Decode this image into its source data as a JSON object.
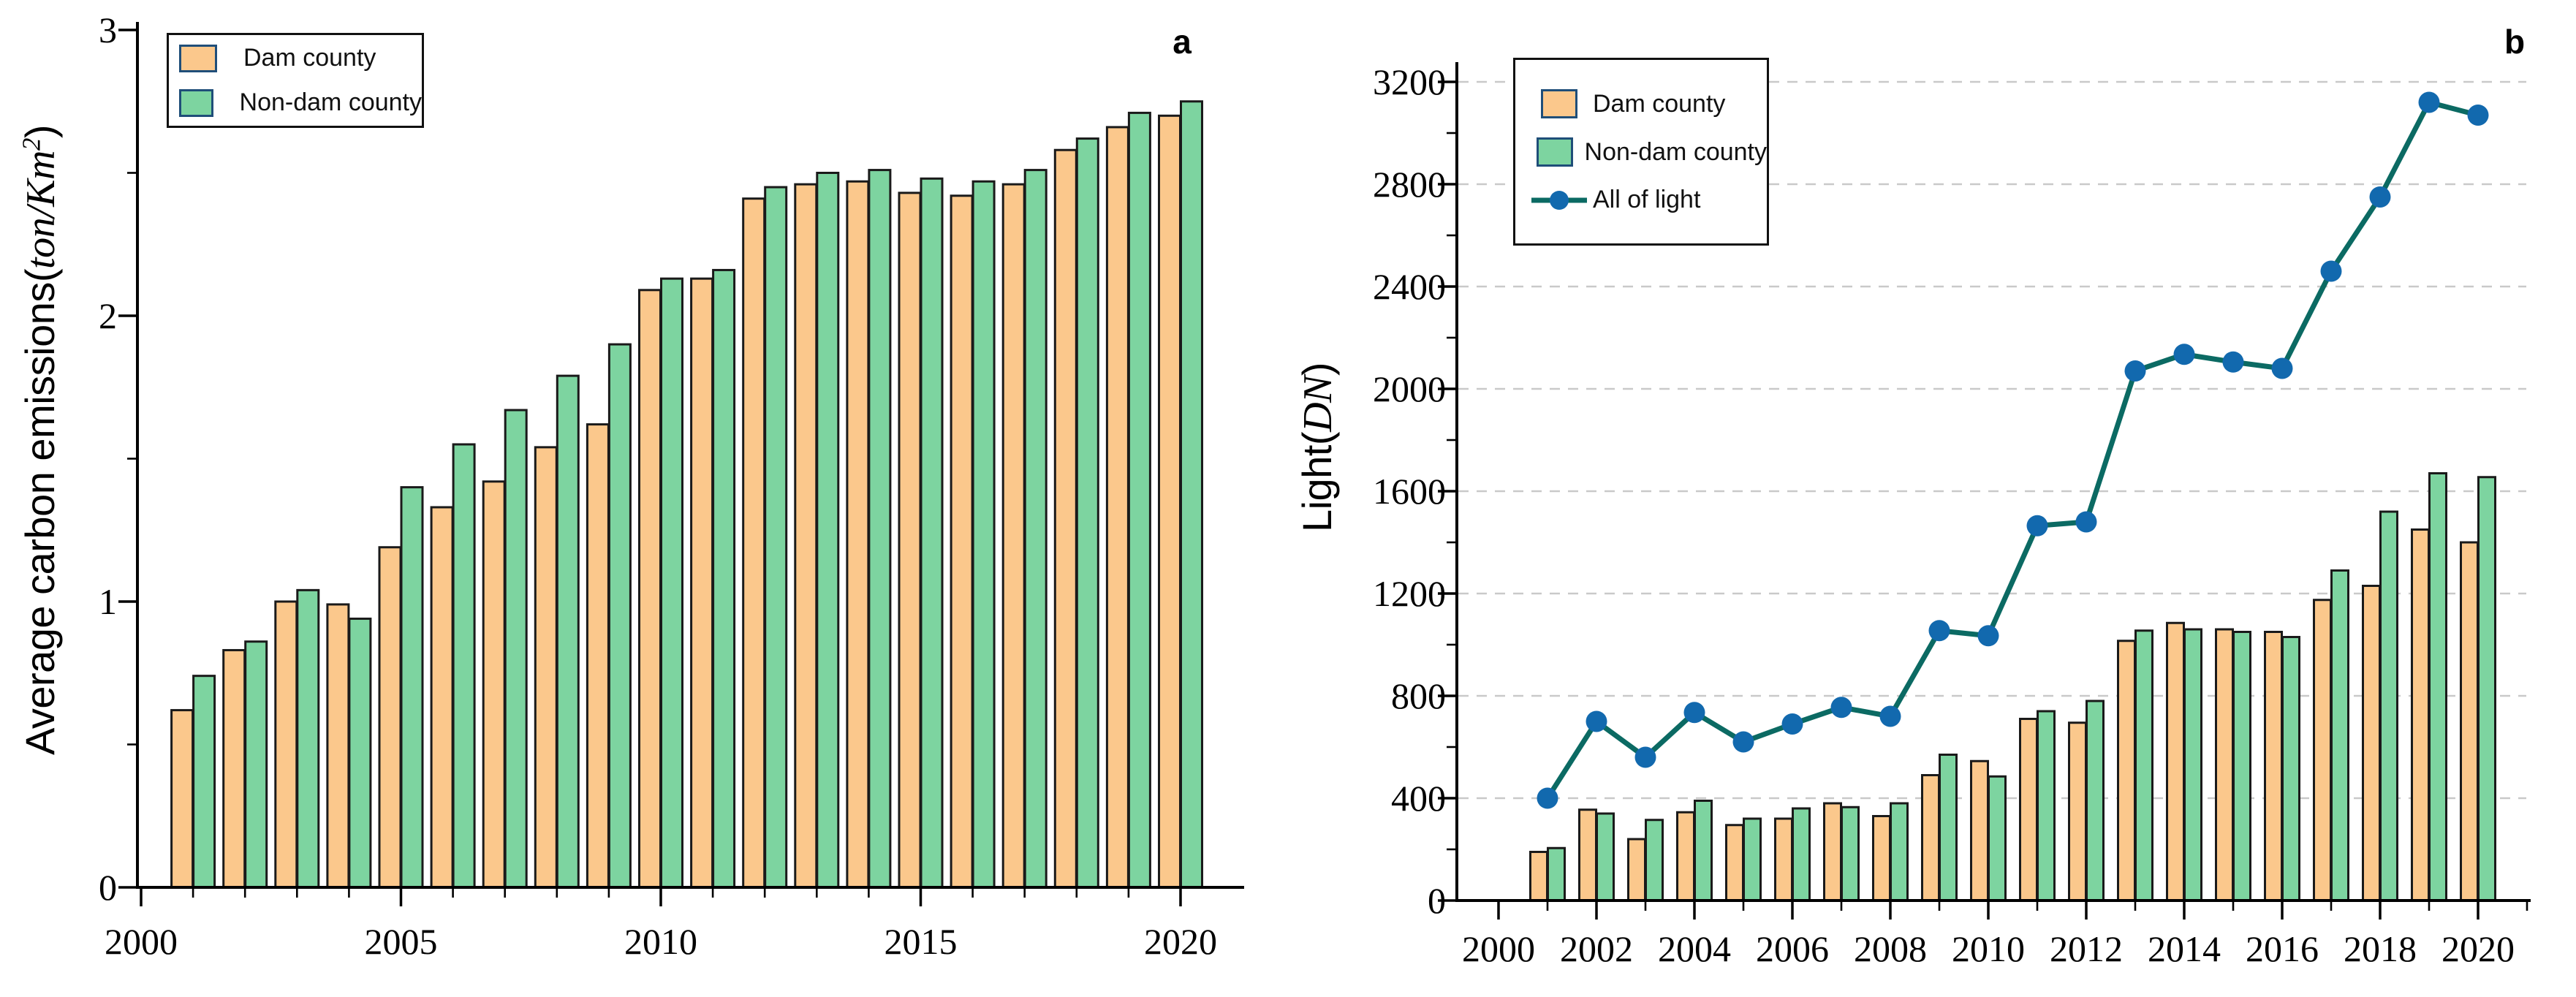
{
  "figure": {
    "background": "#ffffff",
    "text_color": "#000000",
    "grid_color": "#c9c9c9",
    "bar_edge_color": "#1a1a1a",
    "legend_swatch_border": "#1F4E79"
  },
  "chart_data": [
    {
      "id": "a",
      "type": "bar",
      "panel_label": "a",
      "ylabel": {
        "prefix": "Average carbon emissions(",
        "math": "ton/Km",
        "sup": "2",
        "suffix": ")"
      },
      "categories": [
        2001,
        2002,
        2003,
        2004,
        2005,
        2006,
        2007,
        2008,
        2009,
        2010,
        2011,
        2012,
        2013,
        2014,
        2015,
        2016,
        2017,
        2018,
        2019,
        2020
      ],
      "series": [
        {
          "name": "Dam county",
          "color": "#FBC88C",
          "values": [
            0.62,
            0.83,
            1.0,
            0.99,
            1.19,
            1.33,
            1.42,
            1.54,
            1.62,
            2.09,
            2.13,
            2.41,
            2.46,
            2.47,
            2.43,
            2.42,
            2.46,
            2.58,
            2.66,
            2.7
          ]
        },
        {
          "name": "Non-dam county",
          "color": "#7DD4A0",
          "values": [
            0.74,
            0.86,
            1.04,
            0.94,
            1.4,
            1.55,
            1.67,
            1.79,
            1.9,
            2.13,
            2.16,
            2.45,
            2.5,
            2.51,
            2.48,
            2.47,
            2.51,
            2.62,
            2.71,
            2.75
          ]
        }
      ],
      "ylim": [
        0,
        3
      ],
      "yticks": [
        0,
        1,
        2,
        3
      ],
      "yticks_minor": [
        0.5,
        1.5,
        2.5
      ],
      "xticks": [
        2000,
        2005,
        2010,
        2015,
        2020
      ],
      "grid": "off",
      "legend_position": "upper left"
    },
    {
      "id": "b",
      "type": "bar+line",
      "panel_label": "b",
      "ylabel": {
        "prefix": "Light(",
        "math": "DN",
        "suffix": ")"
      },
      "categories": [
        2001,
        2002,
        2003,
        2004,
        2005,
        2006,
        2007,
        2008,
        2009,
        2010,
        2011,
        2012,
        2013,
        2014,
        2015,
        2016,
        2017,
        2018,
        2019,
        2020
      ],
      "series": [
        {
          "name": "Dam county",
          "color": "#FBC88C",
          "values": [
            190,
            355,
            240,
            345,
            295,
            320,
            380,
            330,
            490,
            545,
            710,
            695,
            1015,
            1085,
            1060,
            1050,
            1175,
            1230,
            1450,
            1400
          ]
        },
        {
          "name": "Non-dam county",
          "color": "#7DD4A0",
          "values": [
            205,
            340,
            315,
            390,
            320,
            360,
            365,
            380,
            570,
            485,
            740,
            780,
            1055,
            1060,
            1050,
            1030,
            1290,
            1520,
            1670,
            1655
          ]
        }
      ],
      "line_series": {
        "name": "All of light",
        "line_color": "#0B6A63",
        "marker_color": "#1269AE",
        "values": [
          400,
          700,
          560,
          735,
          620,
          690,
          755,
          720,
          1055,
          1035,
          1465,
          1480,
          2070,
          2135,
          2105,
          2080,
          2460,
          2750,
          3120,
          3070
        ]
      },
      "ylim": [
        0,
        3400
      ],
      "yticks": [
        0,
        400,
        800,
        1200,
        1600,
        2000,
        2400,
        2800,
        3200
      ],
      "yticks_minor": [
        200,
        600,
        1000,
        1400,
        1800,
        2200,
        2600,
        3000
      ],
      "xticks": [
        2000,
        2002,
        2004,
        2006,
        2008,
        2010,
        2012,
        2014,
        2016,
        2018,
        2020
      ],
      "xticks_minor": [
        2001,
        2003,
        2005,
        2007,
        2009,
        2011,
        2013,
        2015,
        2017,
        2019,
        2021
      ],
      "grid": "horizontal-dashed",
      "legend_position": "upper left"
    }
  ]
}
